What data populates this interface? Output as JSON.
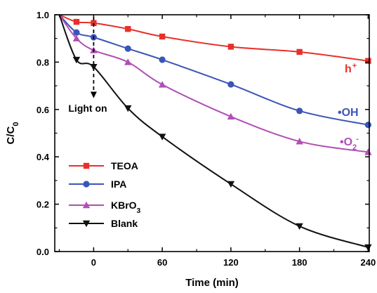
{
  "chart_data": {
    "type": "line",
    "xlabel": "Time (min)",
    "ylabel": "C/C0",
    "ylabel_main": "C/C",
    "ylabel_sub": "0",
    "xlim": [
      -34,
      241
    ],
    "ylim": [
      0.0,
      1.0
    ],
    "xticks": [
      0,
      60,
      120,
      180,
      240
    ],
    "yticks": [
      0.0,
      0.2,
      0.4,
      0.6,
      0.8,
      1.0
    ],
    "ytick_labels": [
      "0.0",
      "0.2",
      "0.4",
      "0.6",
      "0.8",
      "1.0"
    ],
    "legend_position": "lower-left",
    "series": [
      {
        "name": "TEOA",
        "name_main": "TEOA",
        "name_sub": "",
        "color": "#e8302a",
        "marker": "square",
        "x": [
          -30,
          -15,
          0,
          30,
          60,
          120,
          180,
          240
        ],
        "y": [
          1.0,
          0.97,
          0.965,
          0.94,
          0.908,
          0.865,
          0.843,
          0.805
        ],
        "annotation": "h",
        "annotation_sup": "+"
      },
      {
        "name": "IPA",
        "name_main": "IPA",
        "name_sub": "",
        "color": "#3a55b8",
        "marker": "circle",
        "x": [
          -30,
          -15,
          0,
          30,
          60,
          120,
          180,
          240
        ],
        "y": [
          1.0,
          0.925,
          0.905,
          0.857,
          0.81,
          0.706,
          0.594,
          0.535
        ],
        "annotation": "•OH",
        "annotation_sup": ""
      },
      {
        "name": "KBrO3",
        "name_main": "KBrO",
        "name_sub": "3",
        "color": "#b04fb5",
        "marker": "triangle-up",
        "x": [
          -30,
          -15,
          0,
          30,
          60,
          120,
          180,
          240
        ],
        "y": [
          1.0,
          0.9,
          0.85,
          0.8,
          0.705,
          0.57,
          0.465,
          0.42
        ],
        "annotation": "•O",
        "annotation_sub": "2",
        "annotation_sup": "-"
      },
      {
        "name": "Blank",
        "name_main": "Blank",
        "name_sub": "",
        "color": "#111111",
        "marker": "triangle-down",
        "x": [
          -30,
          -15,
          0,
          30,
          60,
          120,
          180,
          240
        ],
        "y": [
          1.0,
          0.81,
          0.78,
          0.605,
          0.485,
          0.285,
          0.107,
          0.018
        ],
        "annotation": "",
        "annotation_sup": ""
      }
    ],
    "annotations": [
      {
        "text": "Light on",
        "x": 0
      }
    ]
  }
}
